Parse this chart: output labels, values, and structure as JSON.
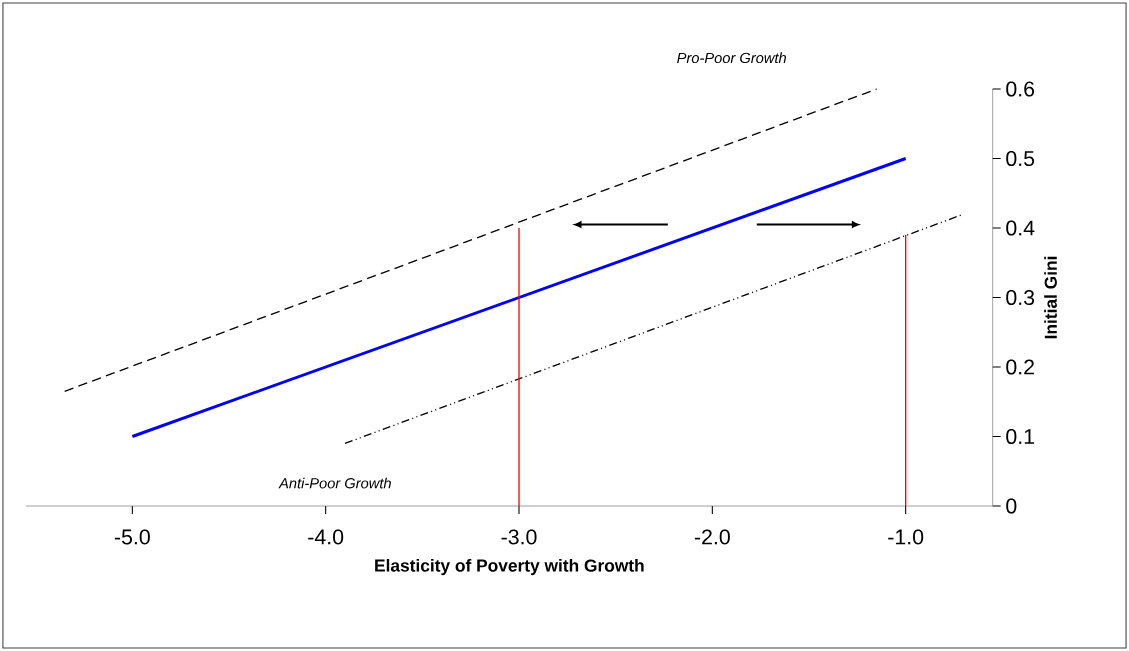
{
  "chart_data": {
    "type": "line",
    "xlabel": "Elasticity of Poverty with Growth",
    "ylabel": "Initial Gini",
    "annotations": [
      "Pro-Poor Growth",
      "Anti-Poor Growth"
    ],
    "series": [
      {
        "x": [
          -5.35,
          -1.15
        ],
        "values": [
          0.165,
          0.6
        ],
        "color": "#000000",
        "line_style": "dashed"
      },
      {
        "x": [
          -5.0,
          -1.0
        ],
        "values": [
          0.1,
          0.5
        ],
        "color": "#0000ff",
        "line_style": "solid"
      },
      {
        "x": [
          -3.9,
          -0.7
        ],
        "values": [
          0.09,
          0.42
        ],
        "color": "#000000",
        "line_style": "dashdotdotted"
      },
      {
        "x": [
          -3.0,
          -3.0
        ],
        "values": [
          0,
          0.4
        ],
        "color": "#ff0000",
        "line_style": "solid"
      },
      {
        "x": [
          -1.0,
          -1.0
        ],
        "values": [
          0,
          0.39
        ],
        "color": "#ff0000",
        "line_style": "solid"
      }
    ],
    "xlim": [
      -5.55,
      -0.55
    ],
    "ylim": [
      0,
      0.6
    ],
    "xticks": [
      {
        "value": -5,
        "label": "-5.0"
      },
      {
        "value": -4,
        "label": "-4.0"
      },
      {
        "value": -3,
        "label": "-3.0"
      },
      {
        "value": -2,
        "label": "-2.0"
      },
      {
        "value": -1,
        "label": "-1.0"
      }
    ],
    "yticks": [
      0,
      0.1,
      0.2,
      0.3,
      0.4,
      0.5,
      0.6
    ],
    "grid": false,
    "legend": false,
    "marker": "none"
  }
}
